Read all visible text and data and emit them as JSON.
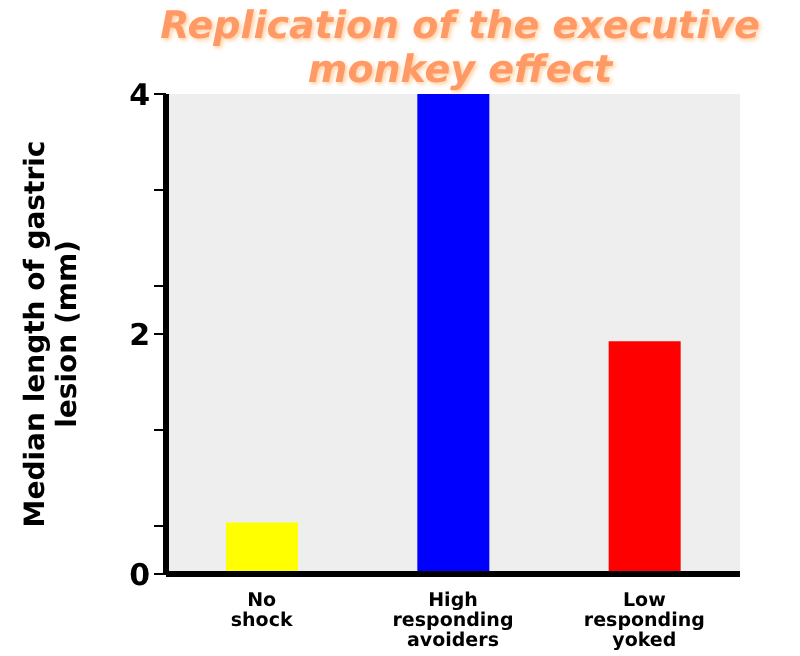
{
  "chart_data": {
    "type": "bar",
    "title": "Replication of the executive monkey effect",
    "ylabel": "Median length of gastric lesion (mm)",
    "categories": [
      "No shock",
      "High responding avoiders",
      "Low responding yoked"
    ],
    "values": [
      0.43,
      4,
      1.94
    ],
    "colors": [
      "#ffff00",
      "#0000ff",
      "#ff0000"
    ],
    "ylim": [
      0,
      4
    ],
    "yticks": [
      0,
      {
        "value": 0.4,
        "label": null
      },
      {
        "value": 1.2,
        "label": null
      },
      2,
      {
        "value": 2.4,
        "label": null
      },
      {
        "value": 3.2,
        "label": null
      },
      4
    ],
    "grid": false
  }
}
